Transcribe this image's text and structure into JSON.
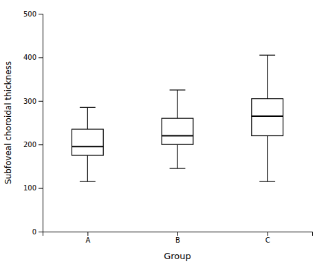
{
  "chart_data": {
    "type": "box",
    "categories": [
      "A",
      "B",
      "C"
    ],
    "values": [
      {
        "whisker_low": 115,
        "q1": 175,
        "median": 195,
        "q3": 235,
        "whisker_high": 285
      },
      {
        "whisker_low": 145,
        "q1": 200,
        "median": 220,
        "q3": 260,
        "whisker_high": 325
      },
      {
        "whisker_low": 115,
        "q1": 220,
        "median": 265,
        "q3": 305,
        "whisker_high": 405
      }
    ],
    "xlabel": "Group",
    "ylabel": "Subfoveal choroidal thickness",
    "ylim": [
      0,
      500
    ],
    "yticks": [
      0,
      100,
      200,
      300,
      400,
      500
    ],
    "color": "black",
    "grid": false
  }
}
